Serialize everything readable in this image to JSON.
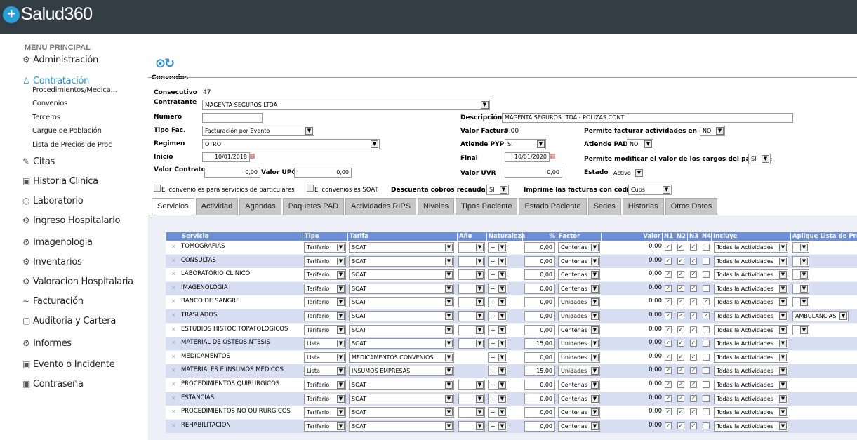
{
  "app": {
    "logo_mark": "+",
    "logo_text": "Salud360"
  },
  "sidebar": {
    "title": "MENU PRINCIPAL",
    "items": [
      {
        "label": "Administración",
        "icon": "⚙"
      },
      {
        "label": "Contratación",
        "icon": "♙"
      },
      {
        "label": "Citas",
        "icon": "✎"
      },
      {
        "label": "Historia Clinica",
        "icon": "▣"
      },
      {
        "label": "Laboratorio",
        "icon": "○"
      },
      {
        "label": "Ingreso Hospitalario",
        "icon": "⚙"
      },
      {
        "label": "Imagenologia",
        "icon": "⚙"
      },
      {
        "label": "Inventarios",
        "icon": "⚙"
      },
      {
        "label": "Valoracion Hospitalaria",
        "icon": "⚙"
      },
      {
        "label": "Facturación",
        "icon": "∼"
      },
      {
        "label": "Auditoria y Cartera",
        "icon": "▢"
      },
      {
        "label": "Informes",
        "icon": "⚙"
      },
      {
        "label": "Evento o Incidente",
        "icon": "▣"
      },
      {
        "label": "Contraseña",
        "icon": "▣"
      }
    ],
    "sub_items": [
      "Procedimientos/Medica...",
      "Convenios",
      "Terceros",
      "Cargue de Población",
      "Lista de Precios de Proc"
    ]
  },
  "page": {
    "title": "Convenios",
    "header_icons": "⊙↻"
  },
  "form": {
    "consecutivo_label": "Consecutivo",
    "consecutivo": "47",
    "contratante_label": "Contratante",
    "contratante": "MAGENTA SEGUROS LTDA",
    "numero_label": "Numero",
    "numero": "",
    "descripcion_label": "Descripción",
    "descripcion": "MAGENTA SEGUROS LTDA - POLIZAS CONT",
    "tipo_fac_label": "Tipo Fac.",
    "tipo_fac": "Facturación por Evento",
    "valor_factura_label": "Valor Factura",
    "valor_factura": "0,00",
    "permite_facturar_label": "Permite facturar actividades en cero",
    "permite_facturar": "NO",
    "regimen_label": "Regimen",
    "regimen": "OTRO",
    "atiende_pyp_label": "Atiende PYP",
    "atiende_pyp": "SI",
    "atiende_pad_label": "Atiende PAD",
    "atiende_pad": "NO",
    "inicio_label": "Inicio",
    "inicio": "10/01/2018",
    "final_label": "Final",
    "final": "10/01/2020",
    "permite_modificar_label": "Permite modificar el valor de los cargos del paciente",
    "permite_modificar": "SI",
    "valor_contrato_label": "Valor Contrato",
    "valor_contrato": "0,00",
    "valor_upc_label": "Valor UPC",
    "valor_upc": "0,00",
    "valor_uvr_label": "Valor UVR",
    "valor_uvr": "0,00",
    "estado_label": "Estado",
    "estado": "Activo",
    "particulares_label": "El convenio es para servicios de particulares",
    "soat_label": "El convenios es SOAT",
    "descuenta_label": "Descuenta cobros recaudados",
    "descuenta": "SI",
    "imprime_label": "Imprime las facturas con codigo",
    "imprime": "Cups"
  },
  "tabs": [
    "Servicios",
    "Actividad",
    "Agendas",
    "Paquetes PAD",
    "Actividades RIPS",
    "Niveles",
    "Tipos Paciente",
    "Estado Paciente",
    "Sedes",
    "Historias",
    "Otros Datos"
  ],
  "grid": {
    "headers": {
      "servicio": "Servicio",
      "tipo": "Tipo",
      "tarifa": "Tarifa",
      "anio": "Año",
      "naturaleza": "Naturaleza",
      "pct": "%",
      "factor": "Factor",
      "valor": "Valor",
      "n1": "N1",
      "n2": "N2",
      "n3": "N3",
      "n4": "N4",
      "incluye": "Incluye",
      "aplique": "Aplique Lista de Precios"
    },
    "rows": [
      {
        "servicio": "TOMOGRAFIAS",
        "tipo": "Tarifario",
        "tarifa": "SOAT",
        "anio": "",
        "nat": "+",
        "pct": "0,00",
        "factor": "Centenas",
        "valor": "0,00",
        "n": [
          true,
          true,
          true,
          false
        ],
        "incluye": "Todas la Actividades",
        "aplique": ""
      },
      {
        "servicio": "CONSULTAS",
        "tipo": "Tarifario",
        "tarifa": "SOAT",
        "anio": "",
        "nat": "+",
        "pct": "0,00",
        "factor": "Centenas",
        "valor": "0,00",
        "n": [
          true,
          true,
          true,
          false
        ],
        "incluye": "Todas la Actividades",
        "aplique": ""
      },
      {
        "servicio": "LABORATORIO CLINICO",
        "tipo": "Tarifario",
        "tarifa": "SOAT",
        "anio": "",
        "nat": "+",
        "pct": "0,00",
        "factor": "Centenas",
        "valor": "0,00",
        "n": [
          true,
          true,
          true,
          false
        ],
        "incluye": "Todas la Actividades",
        "aplique": ""
      },
      {
        "servicio": "IMAGENOLOGIA",
        "tipo": "Tarifario",
        "tarifa": "SOAT",
        "anio": "",
        "nat": "+",
        "pct": "0,00",
        "factor": "Centenas",
        "valor": "0,00",
        "n": [
          true,
          true,
          true,
          false
        ],
        "incluye": "Todas la Actividades",
        "aplique": ""
      },
      {
        "servicio": "BANCO DE SANGRE",
        "tipo": "Tarifario",
        "tarifa": "SOAT",
        "anio": "",
        "nat": "+",
        "pct": "0,00",
        "factor": "Unidades",
        "valor": "0,00",
        "n": [
          true,
          true,
          true,
          true
        ],
        "incluye": "Todas la Actividades",
        "aplique": ""
      },
      {
        "servicio": "TRASLADOS",
        "tipo": "Tarifario",
        "tarifa": "SOAT",
        "anio": "",
        "nat": "+",
        "pct": "0,00",
        "factor": "Unidades",
        "valor": "0,00",
        "n": [
          true,
          true,
          true,
          true
        ],
        "incluye": "Todas la Actividades",
        "aplique": "AMBULANCIAS"
      },
      {
        "servicio": "ESTUDIOS HISTOCITOPATOLOGICOS",
        "tipo": "Tarifario",
        "tarifa": "SOAT",
        "anio": "",
        "nat": "+",
        "pct": "0,00",
        "factor": "Centenas",
        "valor": "0,00",
        "n": [
          true,
          true,
          true,
          false
        ],
        "incluye": "Todas la Actividades",
        "aplique": ""
      },
      {
        "servicio": "MATERIAL DE OSTEOSINTESIS",
        "tipo": "Lista",
        "tarifa": "SOAT",
        "anio": "",
        "nat": "+",
        "pct": "15,00",
        "factor": "Unidades",
        "valor": "0,00",
        "n": [
          true,
          true,
          true,
          false
        ],
        "incluye": "Todas la Actividades",
        "aplique": null
      },
      {
        "servicio": "MEDICAMENTOS",
        "tipo": "Lista",
        "tarifa": "MEDICAMENTOS CONVENIOS",
        "anio": null,
        "nat": "+",
        "pct": "0,00",
        "factor": "Unidades",
        "valor": "0,00",
        "n": [
          true,
          true,
          true,
          false
        ],
        "incluye": "Todas la Actividades",
        "aplique": null
      },
      {
        "servicio": "MATERIALES E INSUMOS MEDICOS",
        "tipo": "Lista",
        "tarifa": "INSUMOS EMPRESAS",
        "anio": null,
        "nat": "+",
        "pct": "15,00",
        "factor": "Unidades",
        "valor": "0,00",
        "n": [
          true,
          true,
          true,
          false
        ],
        "incluye": "Todas la Actividades",
        "aplique": null
      },
      {
        "servicio": "PROCEDIMIENTOS QUIRURGICOS",
        "tipo": "Tarifario",
        "tarifa": "SOAT",
        "anio": "",
        "nat": "+",
        "pct": "0,00",
        "factor": "Centenas",
        "valor": "0,00",
        "n": [
          true,
          true,
          true,
          false
        ],
        "incluye": "Todas la Actividades",
        "aplique": null
      },
      {
        "servicio": "ESTANCIAS",
        "tipo": "Tarifario",
        "tarifa": "SOAT",
        "anio": "",
        "nat": "+",
        "pct": "0,00",
        "factor": "Centenas",
        "valor": "0,00",
        "n": [
          true,
          true,
          true,
          false
        ],
        "incluye": "Todas la Actividades",
        "aplique": null
      },
      {
        "servicio": "PROCEDIMIENTOS NO QUIRURGICOS",
        "tipo": "Tarifario",
        "tarifa": "SOAT",
        "anio": "",
        "nat": "+",
        "pct": "0,00",
        "factor": "Centenas",
        "valor": "0,00",
        "n": [
          true,
          true,
          true,
          false
        ],
        "incluye": "Todas la Actividades",
        "aplique": null
      },
      {
        "servicio": "REHABILITACION",
        "tipo": "Tarifario",
        "tarifa": "SOAT",
        "anio": "",
        "nat": "+",
        "pct": "0,00",
        "factor": "Centenas",
        "valor": "0,00",
        "n": [
          true,
          true,
          true,
          false
        ],
        "incluye": "Todas la Actividades",
        "aplique": null
      }
    ]
  }
}
